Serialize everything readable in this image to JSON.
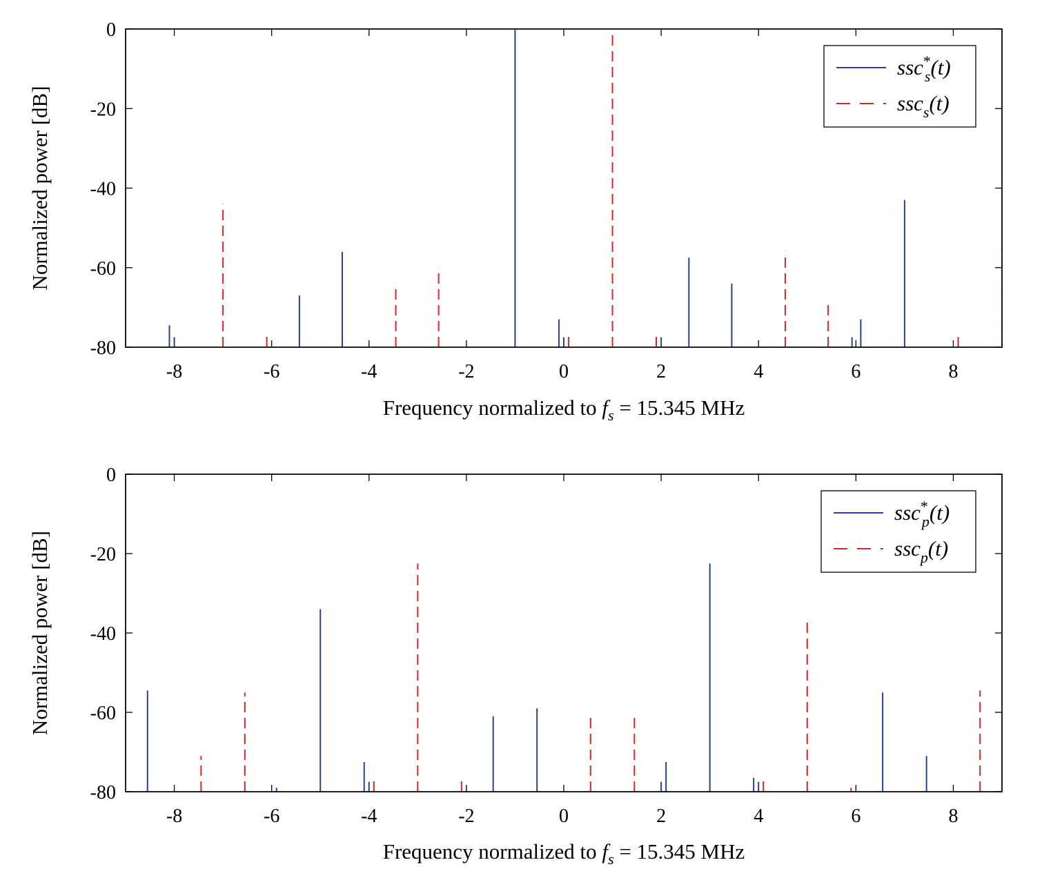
{
  "chart_data": [
    {
      "type": "stem",
      "xlabel": "Frequency normalized to",
      "xlabel_math": {
        "var": "f",
        "sub": "s",
        "rest": " = 15.345 MHz"
      },
      "ylabel": "Normalized power [dB]",
      "xlim": [
        -9,
        9
      ],
      "ylim": [
        -80,
        0
      ],
      "xticks": [
        "-8",
        "-6",
        "-4",
        "-2",
        "0",
        "2",
        "4",
        "6",
        "8"
      ],
      "yticks": [
        "0",
        "-20",
        "-40",
        "-60",
        "-80"
      ],
      "legend_position": "top-right",
      "series": [
        {
          "name": "ssc*_s(t)",
          "legend": {
            "base": "ssc",
            "sup": "*",
            "sub": "s",
            "arg": "(t)"
          },
          "color": "#2b3f8f",
          "style": "solid",
          "x": [
            -8.1,
            -8.0,
            -5.43,
            -4.55,
            -1.0,
            -0.1,
            0.0,
            1.9,
            2.0,
            2.57,
            3.45,
            5.92,
            6.1,
            7.0
          ],
          "y": [
            -74.5,
            -77.5,
            -67,
            -56,
            0,
            -73,
            -77.5,
            -77.5,
            -77.5,
            -57.5,
            -64,
            -77.5,
            -73,
            -43
          ]
        },
        {
          "name": "ssc_s(t)",
          "legend": {
            "base": "ssc",
            "sup": "",
            "sub": "s",
            "arg": "(t)"
          },
          "color": "#d6262c",
          "style": "dashed",
          "x": [
            -7.0,
            -6.1,
            -3.45,
            -2.57,
            0.1,
            1.0,
            1.9,
            4.55,
            5.43,
            8.1,
            9.0
          ],
          "y": [
            -44,
            -76,
            -64,
            -60,
            -76,
            0,
            -76,
            -56,
            -68,
            -76,
            -52
          ]
        }
      ]
    },
    {
      "type": "stem",
      "xlabel": "Frequency normalized to",
      "xlabel_math": {
        "var": "f",
        "sub": "s",
        "rest": " = 15.345 MHz"
      },
      "ylabel": "Normalized power [dB]",
      "xlim": [
        -9,
        9
      ],
      "ylim": [
        -80,
        0
      ],
      "xticks": [
        "-8",
        "-6",
        "-4",
        "-2",
        "0",
        "2",
        "4",
        "6",
        "8"
      ],
      "yticks": [
        "0",
        "-20",
        "-40",
        "-60",
        "-80"
      ],
      "legend_position": "top-right",
      "series": [
        {
          "name": "ssc*_p(t)",
          "legend": {
            "base": "ssc",
            "sup": "*",
            "sub": "p",
            "arg": "(t)"
          },
          "color": "#2b3f8f",
          "style": "solid",
          "x": [
            -8.55,
            -5.9,
            -5.0,
            -4.1,
            -4.0,
            -1.45,
            -0.55,
            2.0,
            2.1,
            3.0,
            3.9,
            4.0,
            6.55,
            7.45
          ],
          "y": [
            -54.5,
            -79,
            -34,
            -72.5,
            -77.5,
            -61,
            -59,
            -77.5,
            -72.5,
            -22.5,
            -76.5,
            -77.5,
            -55,
            -71
          ]
        },
        {
          "name": "ssc_p(t)",
          "legend": {
            "base": "ssc",
            "sup": "",
            "sub": "p",
            "arg": "(t)"
          },
          "color": "#d6262c",
          "style": "dashed",
          "x": [
            -7.45,
            -6.55,
            -3.9,
            -3.0,
            -2.1,
            0.55,
            1.45,
            4.1,
            5.0,
            5.9,
            8.55
          ],
          "y": [
            -71,
            -55,
            -76.5,
            -22.5,
            -76,
            -60,
            -61,
            -76,
            -36,
            -79,
            -54.5
          ]
        }
      ]
    }
  ]
}
